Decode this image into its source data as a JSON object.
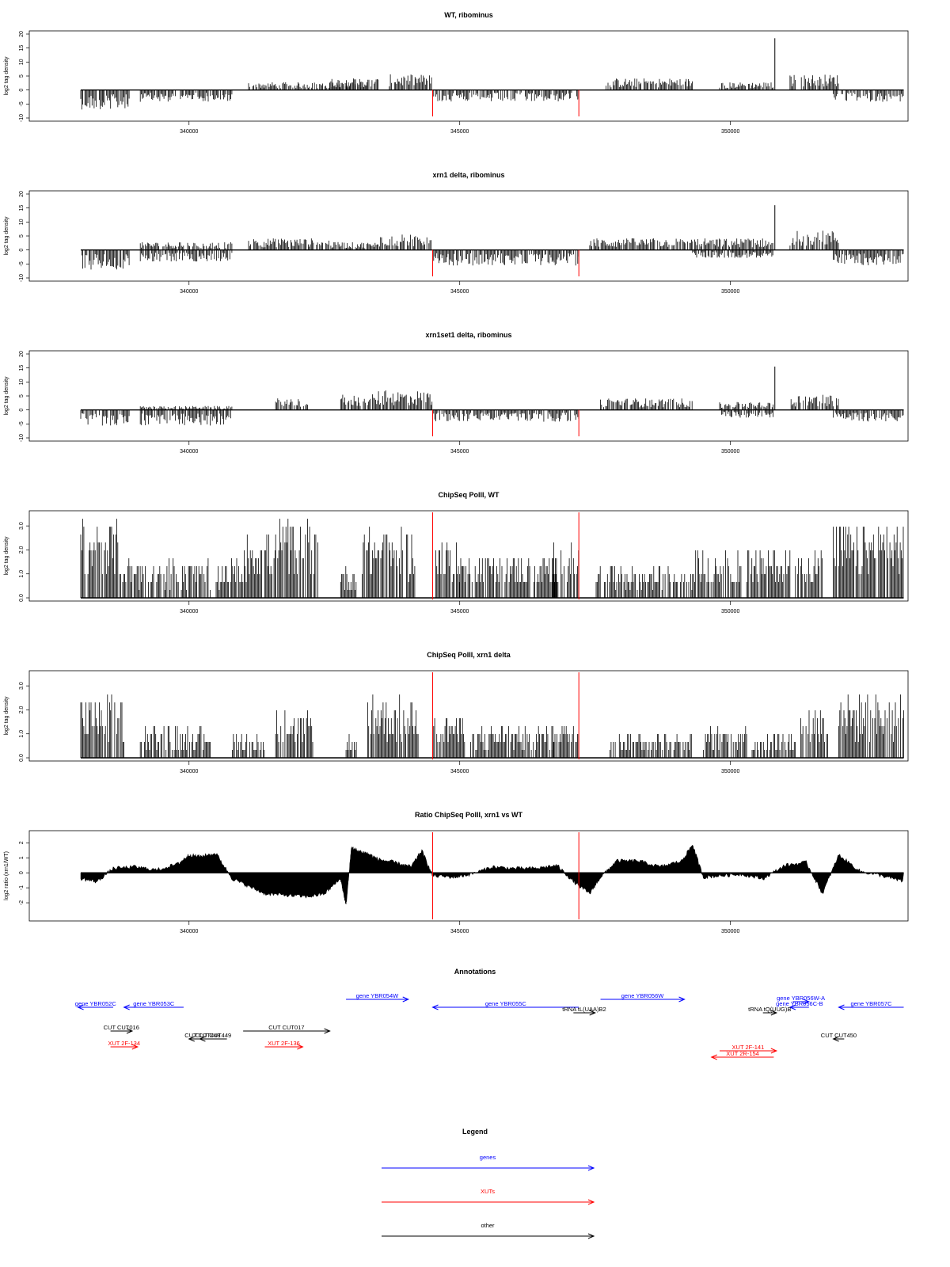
{
  "colors": {
    "gene": "#0000ff",
    "xut": "#ff0000",
    "other": "#000000",
    "marker": "#ff0000",
    "axis": "#000000"
  },
  "chart_data": [
    {
      "type": "bar",
      "signed": true,
      "title": "WT, ribominus",
      "ylabel": "log2 tag density",
      "xlim": [
        337050,
        353280
      ],
      "ylim": [
        -10,
        20
      ],
      "yticks": [
        -10,
        -5,
        0,
        5,
        10,
        15,
        20
      ],
      "yticklabels": [
        "-10",
        "-5",
        "0",
        "5",
        "10",
        "15",
        "20"
      ],
      "xticks": [
        340000,
        345000,
        350000
      ],
      "xticklabels": [
        "340000",
        "345000",
        "350000"
      ],
      "markers": [
        344500,
        347200
      ],
      "segments": [
        {
          "from": 338000,
          "to": 338400,
          "level": -5
        },
        {
          "from": 338400,
          "to": 338900,
          "level": -5
        },
        {
          "from": 339100,
          "to": 340800,
          "level": -3
        },
        {
          "from": 341100,
          "to": 343300,
          "level": 2
        },
        {
          "from": 342600,
          "to": 343500,
          "level": 3
        },
        {
          "from": 343700,
          "to": 344500,
          "level": 4
        },
        {
          "from": 344500,
          "to": 347200,
          "level": -3
        },
        {
          "from": 347700,
          "to": 349300,
          "level": 3
        },
        {
          "from": 349800,
          "to": 350800,
          "level": 2
        },
        {
          "from": 351100,
          "to": 352000,
          "level": 4
        },
        {
          "from": 351900,
          "to": 353200,
          "level": -3
        }
      ],
      "spikes": [
        {
          "x": 350820,
          "y": 18.5
        }
      ]
    },
    {
      "type": "bar",
      "signed": true,
      "title": "xrn1 delta, ribominus",
      "ylabel": "log2 tag density",
      "xlim": [
        337050,
        353280
      ],
      "ylim": [
        -10,
        20
      ],
      "yticks": [
        -10,
        -5,
        0,
        5,
        10,
        15,
        20
      ],
      "yticklabels": [
        "-10",
        "-5",
        "0",
        "5",
        "10",
        "15",
        "20"
      ],
      "xticks": [
        340000,
        345000,
        350000
      ],
      "xticklabels": [
        "340000",
        "345000",
        "350000"
      ],
      "markers": [
        344500,
        347200
      ],
      "segments": [
        {
          "from": 338000,
          "to": 338900,
          "level": -5
        },
        {
          "from": 339100,
          "to": 340800,
          "level": 2
        },
        {
          "from": 339100,
          "to": 340800,
          "level": -3
        },
        {
          "from": 341100,
          "to": 342600,
          "level": 3
        },
        {
          "from": 342600,
          "to": 343500,
          "level": 2
        },
        {
          "from": 343500,
          "to": 344500,
          "level": 4
        },
        {
          "from": 344500,
          "to": 347200,
          "level": -4
        },
        {
          "from": 347400,
          "to": 349300,
          "level": 3
        },
        {
          "from": 349300,
          "to": 350800,
          "level": 3
        },
        {
          "from": 349300,
          "to": 350800,
          "level": -2
        },
        {
          "from": 351100,
          "to": 352000,
          "level": 5
        },
        {
          "from": 351900,
          "to": 353200,
          "level": -4
        }
      ],
      "spikes": [
        {
          "x": 350820,
          "y": 16
        }
      ]
    },
    {
      "type": "bar",
      "signed": true,
      "title": "xrn1set1 delta, ribominus",
      "ylabel": "log2 tag density",
      "xlim": [
        337050,
        353280
      ],
      "ylim": [
        -10,
        20
      ],
      "yticks": [
        -10,
        -5,
        0,
        5,
        10,
        15,
        20
      ],
      "yticklabels": [
        "-10",
        "-5",
        "0",
        "5",
        "10",
        "15",
        "20"
      ],
      "xticks": [
        340000,
        345000,
        350000
      ],
      "xticklabels": [
        "340000",
        "345000",
        "350000"
      ],
      "markers": [
        344500,
        347200
      ],
      "segments": [
        {
          "from": 338000,
          "to": 338900,
          "level": -4
        },
        {
          "from": 339100,
          "to": 340800,
          "level": -4
        },
        {
          "from": 339100,
          "to": 340800,
          "level": 1
        },
        {
          "from": 341600,
          "to": 342200,
          "level": 3
        },
        {
          "from": 342800,
          "to": 343500,
          "level": 4
        },
        {
          "from": 343500,
          "to": 344500,
          "level": 5
        },
        {
          "from": 344500,
          "to": 347200,
          "level": -3
        },
        {
          "from": 347600,
          "to": 349300,
          "level": 3
        },
        {
          "from": 349800,
          "to": 350800,
          "level": 2
        },
        {
          "from": 349800,
          "to": 350800,
          "level": -2
        },
        {
          "from": 351100,
          "to": 352000,
          "level": 4
        },
        {
          "from": 351900,
          "to": 353200,
          "level": -3
        }
      ],
      "spikes": [
        {
          "x": 350820,
          "y": 15.5
        }
      ]
    },
    {
      "type": "bar",
      "signed": false,
      "title": "ChipSeq PolII, WT",
      "ylabel": "log2 tag density",
      "xlim": [
        337050,
        353280
      ],
      "ylim": [
        0,
        3.5
      ],
      "yticks": [
        0,
        1,
        2,
        3
      ],
      "yticklabels": [
        "0.0",
        "1.0",
        "2.0",
        "3.0"
      ],
      "xticks": [
        340000,
        345000,
        350000
      ],
      "xticklabels": [
        "340000",
        "345000",
        "350000"
      ],
      "markers": [
        344500,
        347200
      ],
      "segments": [
        {
          "from": 338000,
          "to": 338700,
          "level": 2.5
        },
        {
          "from": 338700,
          "to": 340400,
          "level": 1.2
        },
        {
          "from": 340500,
          "to": 341000,
          "level": 1.2
        },
        {
          "from": 341000,
          "to": 341600,
          "level": 2.2
        },
        {
          "from": 341600,
          "to": 342400,
          "level": 2.5
        },
        {
          "from": 342800,
          "to": 343100,
          "level": 1.0
        },
        {
          "from": 343200,
          "to": 344200,
          "level": 2.2
        },
        {
          "from": 344500,
          "to": 345000,
          "level": 1.8
        },
        {
          "from": 345000,
          "to": 346800,
          "level": 1.4
        },
        {
          "from": 346700,
          "to": 347200,
          "level": 1.8
        },
        {
          "from": 347500,
          "to": 349300,
          "level": 1.0
        },
        {
          "from": 349300,
          "to": 350200,
          "level": 1.6
        },
        {
          "from": 350300,
          "to": 351100,
          "level": 1.6
        },
        {
          "from": 351200,
          "to": 351700,
          "level": 1.6
        },
        {
          "from": 351900,
          "to": 353200,
          "level": 2.4
        }
      ],
      "spikes": []
    },
    {
      "type": "bar",
      "signed": false,
      "title": "ChipSeq PolII, xrn1 delta",
      "ylabel": "log2 tag density",
      "xlim": [
        337050,
        353280
      ],
      "ylim": [
        0,
        3.5
      ],
      "yticks": [
        0,
        1,
        2,
        3
      ],
      "yticklabels": [
        "0.0",
        "1.0",
        "2.0",
        "3.0"
      ],
      "xticks": [
        340000,
        345000,
        350000
      ],
      "xticklabels": [
        "340000",
        "345000",
        "350000"
      ],
      "markers": [
        344500,
        347200
      ],
      "segments": [
        {
          "from": 338000,
          "to": 338800,
          "level": 2.0
        },
        {
          "from": 339100,
          "to": 340400,
          "level": 1.0
        },
        {
          "from": 340800,
          "to": 341400,
          "level": 0.8
        },
        {
          "from": 341600,
          "to": 342300,
          "level": 1.5
        },
        {
          "from": 342900,
          "to": 343100,
          "level": 0.7
        },
        {
          "from": 343300,
          "to": 344300,
          "level": 2.0
        },
        {
          "from": 344500,
          "to": 345100,
          "level": 1.4
        },
        {
          "from": 345200,
          "to": 346800,
          "level": 1.0
        },
        {
          "from": 346700,
          "to": 347200,
          "level": 1.2
        },
        {
          "from": 347700,
          "to": 349300,
          "level": 0.8
        },
        {
          "from": 349500,
          "to": 350300,
          "level": 1.0
        },
        {
          "from": 350400,
          "to": 351200,
          "level": 0.8
        },
        {
          "from": 351300,
          "to": 351800,
          "level": 1.6
        },
        {
          "from": 352000,
          "to": 353200,
          "level": 2.0
        }
      ],
      "spikes": []
    },
    {
      "type": "area",
      "signed": true,
      "title": "Ratio ChipSeq PolII, xrn1 vs WT",
      "ylabel": "log2 ratio (xrn1/WT)",
      "xlim": [
        337050,
        353280
      ],
      "ylim": [
        -3,
        2.6
      ],
      "yticks": [
        -2,
        -1,
        0,
        1,
        2
      ],
      "yticklabels": [
        "-2",
        "-1",
        "0",
        "1",
        "2"
      ],
      "xticks": [
        340000,
        345000,
        350000
      ],
      "xticklabels": [
        "340000",
        "345000",
        "350000"
      ],
      "markers": [
        344500,
        347200
      ],
      "x": [
        338000,
        338300,
        338600,
        339000,
        339400,
        339800,
        340000,
        340200,
        340500,
        340800,
        341100,
        341400,
        341800,
        342200,
        342500,
        342800,
        342900,
        343000,
        343100,
        343300,
        343500,
        343800,
        344100,
        344300,
        344500,
        344900,
        345200,
        345600,
        346000,
        346400,
        346800,
        347100,
        347400,
        347600,
        347900,
        348300,
        348700,
        349100,
        349300,
        349500,
        349800,
        350200,
        350600,
        351000,
        351400,
        351700,
        352000,
        352400,
        352800,
        353200
      ],
      "y": [
        -0.4,
        -0.6,
        0.3,
        0.4,
        0.2,
        0.6,
        1.2,
        1.1,
        1.3,
        -0.4,
        -0.9,
        -1.4,
        -1.5,
        -1.6,
        -1.4,
        -0.4,
        -2.2,
        1.7,
        1.5,
        1.3,
        0.9,
        0.7,
        0.4,
        1.5,
        -0.2,
        -0.3,
        -0.1,
        0.4,
        0.3,
        0.3,
        0.5,
        -0.6,
        -1.4,
        -0.3,
        0.8,
        0.8,
        0.4,
        0.8,
        1.9,
        -0.3,
        -0.2,
        -0.1,
        -0.4,
        0.5,
        0.7,
        -1.4,
        1.2,
        0.1,
        -0.2,
        -0.6
      ]
    }
  ],
  "annotations": {
    "title": "Annotations",
    "xlim": [
      337050,
      353280
    ],
    "items": [
      {
        "label": "gene YBR052C",
        "from": 338600,
        "to": 337950,
        "row": 2,
        "kind": "gene"
      },
      {
        "label": "gene YBR053C",
        "from": 339900,
        "to": 338800,
        "row": 2,
        "kind": "gene"
      },
      {
        "label": "gene YBR054W",
        "from": 342900,
        "to": 344050,
        "row": 1,
        "kind": "gene"
      },
      {
        "label": "gene YBR055C",
        "from": 347200,
        "to": 344500,
        "row": 2,
        "kind": "gene"
      },
      {
        "label": "gene YBR056W",
        "from": 347600,
        "to": 349150,
        "row": 1,
        "kind": "gene"
      },
      {
        "label": "gene YBR056W-A",
        "from": 351150,
        "to": 351450,
        "row": 1.3,
        "kind": "gene"
      },
      {
        "label": "gene YBR056C-B",
        "from": 351450,
        "to": 351100,
        "row": 2,
        "kind": "gene"
      },
      {
        "label": "gene YBR057C",
        "from": 353200,
        "to": 352000,
        "row": 2,
        "kind": "gene"
      },
      {
        "label": "tRNA tL(UAA)B2",
        "from": 347100,
        "to": 347500,
        "row": 2.7,
        "kind": "other"
      },
      {
        "label": "tRNA tQ(UUG)B",
        "from": 350600,
        "to": 350850,
        "row": 2.7,
        "kind": "other"
      },
      {
        "label": "CUT CUT016",
        "from": 338550,
        "to": 338950,
        "row": 5,
        "kind": "other"
      },
      {
        "label": "CUT CUT017",
        "from": 341000,
        "to": 342600,
        "row": 5,
        "kind": "other"
      },
      {
        "label": "CUT CUT449",
        "from": 340700,
        "to": 340200,
        "row": 6,
        "kind": "other"
      },
      {
        "label": "CUT CUT448",
        "from": 340500,
        "to": 340000,
        "row": 6,
        "kind": "other"
      },
      {
        "label": "CUT CUT450",
        "from": 352100,
        "to": 351900,
        "row": 6,
        "kind": "other"
      },
      {
        "label": "XUT 2F-134",
        "from": 338550,
        "to": 339050,
        "row": 7,
        "kind": "xut"
      },
      {
        "label": "XUT 2F-136",
        "from": 341400,
        "to": 342100,
        "row": 7,
        "kind": "xut"
      },
      {
        "label": "XUT 2F-141",
        "from": 349800,
        "to": 350850,
        "row": 7.5,
        "kind": "xut"
      },
      {
        "label": "XUT 2R-154",
        "from": 350800,
        "to": 349650,
        "row": 8.3,
        "kind": "xut"
      }
    ]
  },
  "legend": {
    "title": "Legend",
    "items": [
      {
        "label": "genes",
        "kind": "gene"
      },
      {
        "label": "XUTs",
        "kind": "xut"
      },
      {
        "label": "other",
        "kind": "other"
      }
    ]
  }
}
